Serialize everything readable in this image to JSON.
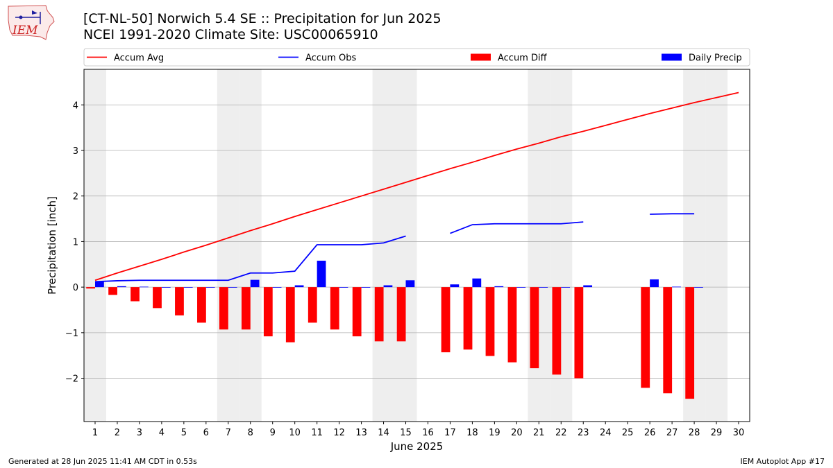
{
  "logo_text": "IEM",
  "title_line1": "[CT-NL-50] Norwich 5.4 SE :: Precipitation for Jun 2025",
  "title_line2": "NCEI 1991-2020 Climate Site: USC00065910",
  "footer_left": "Generated at 28 Jun 2025 11:41 AM CDT in 0.53s",
  "footer_right": "IEM Autoplot App #17",
  "colors": {
    "avg": "#ff0000",
    "obs": "#0000ff",
    "diff": "#ff0000",
    "daily": "#0000ff",
    "weekend": "#eeeeee",
    "grid": "#b0b0b0"
  },
  "chart_data": {
    "type": "bar",
    "title": "[CT-NL-50] Norwich 5.4 SE :: Precipitation for Jun 2025",
    "subtitle": "NCEI 1991-2020 Climate Site: USC00065910",
    "xlabel": "June 2025",
    "ylabel": "Precipitation [inch]",
    "xlim": [
      0.5,
      30.5
    ],
    "ylim": [
      -2.95,
      4.78
    ],
    "yticks": [
      4,
      3,
      2,
      1,
      0,
      -1,
      -2
    ],
    "ytick_labels": [
      "4",
      "3",
      "2",
      "1",
      "0",
      "−1",
      "−2"
    ],
    "xticks": [
      1,
      2,
      3,
      4,
      5,
      6,
      7,
      8,
      9,
      10,
      11,
      12,
      13,
      14,
      15,
      16,
      17,
      18,
      19,
      20,
      21,
      22,
      23,
      24,
      25,
      26,
      27,
      28,
      29,
      30
    ],
    "grid": "horizontal",
    "legend_position": "top",
    "weekend_days": [
      1,
      7,
      8,
      14,
      15,
      21,
      22,
      28,
      29
    ],
    "legend": [
      "Accum Avg",
      "Accum Obs",
      "Accum Diff",
      "Daily Precip"
    ],
    "days": [
      1,
      2,
      3,
      4,
      5,
      6,
      7,
      8,
      9,
      10,
      11,
      12,
      13,
      14,
      15,
      16,
      17,
      18,
      19,
      20,
      21,
      22,
      23,
      24,
      25,
      26,
      27,
      28,
      29,
      30
    ],
    "series": [
      {
        "name": "Accum Avg",
        "kind": "line",
        "values": [
          0.15,
          0.31,
          0.46,
          0.61,
          0.77,
          0.92,
          1.08,
          1.24,
          1.39,
          1.55,
          1.7,
          1.85,
          2.0,
          2.15,
          2.3,
          2.45,
          2.6,
          2.74,
          2.89,
          3.03,
          3.16,
          3.3,
          3.42,
          3.55,
          3.68,
          3.81,
          3.93,
          4.05,
          4.16,
          4.27
        ]
      },
      {
        "name": "Accum Obs",
        "kind": "line",
        "values": [
          0.12,
          0.14,
          0.15,
          0.15,
          0.15,
          0.15,
          0.15,
          0.31,
          0.31,
          0.35,
          0.93,
          0.93,
          0.93,
          0.97,
          1.12,
          null,
          1.18,
          1.37,
          1.39,
          1.39,
          1.39,
          1.39,
          1.43,
          null,
          null,
          1.6,
          1.61,
          1.61,
          null,
          null
        ]
      },
      {
        "name": "Accum Diff",
        "kind": "bar",
        "values": [
          -0.03,
          -0.17,
          -0.31,
          -0.46,
          -0.62,
          -0.78,
          -0.93,
          -0.93,
          -1.08,
          -1.21,
          -0.78,
          -0.93,
          -1.08,
          -1.19,
          -1.19,
          null,
          -1.43,
          -1.37,
          -1.51,
          -1.65,
          -1.78,
          -1.92,
          -2.0,
          null,
          null,
          -2.21,
          -2.33,
          -2.45,
          null,
          null
        ]
      },
      {
        "name": "Daily Precip",
        "kind": "bar",
        "values": [
          0.12,
          0.02,
          0.01,
          0,
          0,
          0,
          0,
          0.16,
          0,
          0.04,
          0.58,
          0,
          0,
          0.04,
          0.15,
          null,
          0.06,
          0.19,
          0.02,
          0,
          0,
          0,
          0.04,
          null,
          null,
          0.17,
          0.01,
          0,
          null,
          null
        ]
      }
    ]
  }
}
